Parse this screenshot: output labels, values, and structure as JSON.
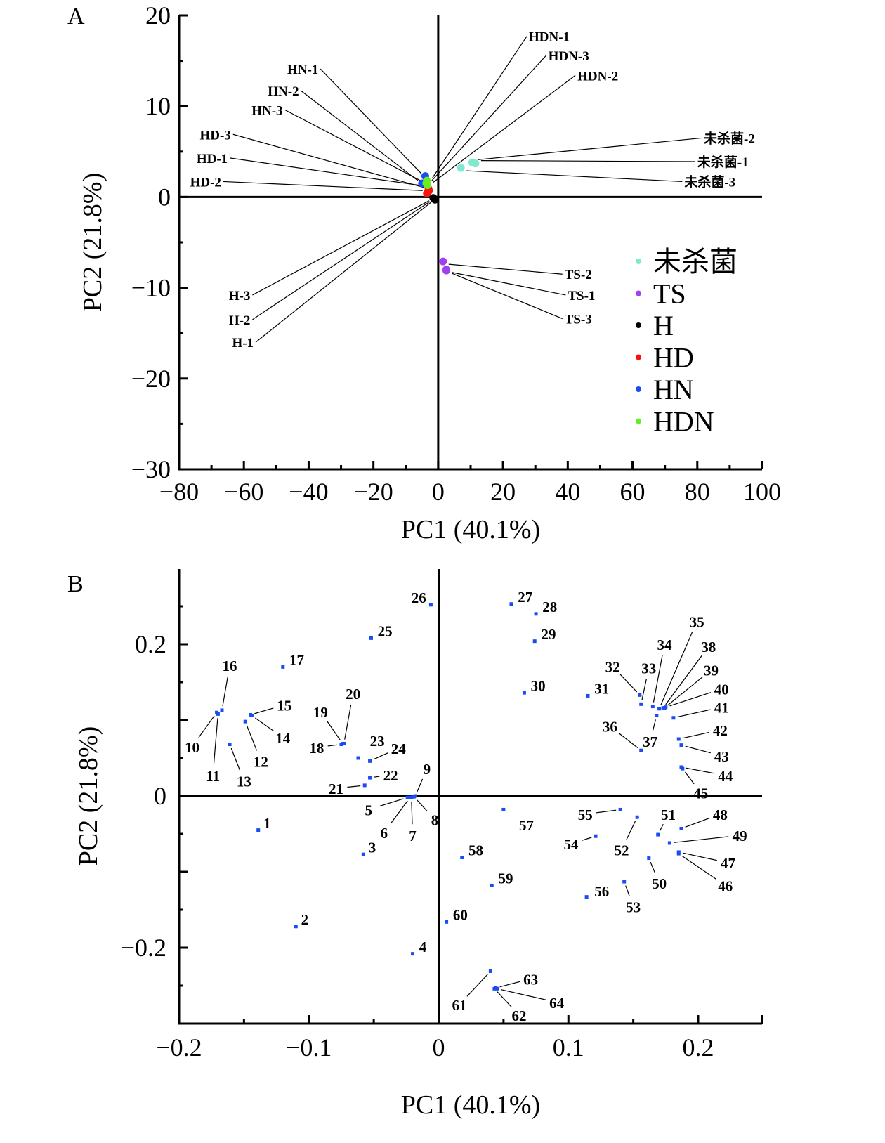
{
  "chart_data": [
    {
      "panel": "A",
      "type": "scatter",
      "title": "",
      "xlabel": "PC1 (40.1%)",
      "ylabel": "PC2 (21.8%)",
      "xlim": [
        -80,
        100
      ],
      "ylim": [
        -30,
        20
      ],
      "xticks": [
        "−80",
        "−60",
        "−40",
        "−20",
        "0",
        "20",
        "40",
        "60",
        "80",
        "100"
      ],
      "xtick_values": [
        -80,
        -60,
        -40,
        -20,
        0,
        20,
        40,
        60,
        80,
        100
      ],
      "yticks": [
        "20",
        "10",
        "0",
        "−10",
        "−20",
        "−30"
      ],
      "ytick_values": [
        20,
        10,
        0,
        -10,
        -20,
        -30
      ],
      "grid": false,
      "legend_position": "right",
      "legend": [
        {
          "name": "未杀菌",
          "color": "#7fe8cf"
        },
        {
          "name": "TS",
          "color": "#a040f0"
        },
        {
          "name": "H",
          "color": "#000000"
        },
        {
          "name": "HD",
          "color": "#ff1010"
        },
        {
          "name": "HN",
          "color": "#1a4cf5"
        },
        {
          "name": "HDN",
          "color": "#66ee22"
        }
      ],
      "series": [
        {
          "name": "未杀菌",
          "points": [
            {
              "label": "未杀菌-1",
              "x": 11.5,
              "y": 3.7,
              "lx": 80,
              "ly": 3.9
            },
            {
              "label": "未杀菌-2",
              "x": 10.5,
              "y": 3.8,
              "lx": 82,
              "ly": 6.5
            },
            {
              "label": "未杀菌-3",
              "x": 7.0,
              "y": 3.2,
              "lx": 76,
              "ly": 1.7
            }
          ]
        },
        {
          "name": "TS",
          "points": [
            {
              "label": "TS-1",
              "x": 2.5,
              "y": -8.0,
              "lx": 40,
              "ly": -10.8
            },
            {
              "label": "TS-2",
              "x": 1.5,
              "y": -7.1,
              "lx": 39,
              "ly": -8.5
            },
            {
              "label": "TS-3",
              "x": 2.5,
              "y": -8.1,
              "lx": 39,
              "ly": -13.4
            }
          ]
        },
        {
          "name": "H",
          "points": [
            {
              "label": "H-1",
              "x": -1.0,
              "y": -0.3,
              "lx": -57,
              "ly": -16.0
            },
            {
              "label": "H-2",
              "x": -1.3,
              "y": -0.2,
              "lx": -58,
              "ly": -13.5
            },
            {
              "label": "H-3",
              "x": -1.5,
              "y": -0.1,
              "lx": -58,
              "ly": -10.8
            }
          ]
        },
        {
          "name": "HD",
          "points": [
            {
              "label": "HD-1",
              "x": -3.0,
              "y": 0.9,
              "lx": -65,
              "ly": 4.3
            },
            {
              "label": "HD-2",
              "x": -3.5,
              "y": 0.4,
              "lx": -67,
              "ly": 1.7
            },
            {
              "label": "HD-3",
              "x": -2.8,
              "y": 0.7,
              "lx": -64,
              "ly": 6.9
            }
          ]
        },
        {
          "name": "HN",
          "points": [
            {
              "label": "HN-1",
              "x": -4.0,
              "y": 2.3,
              "lx": -37,
              "ly": 14.1
            },
            {
              "label": "HN-2",
              "x": -5.0,
              "y": 1.5,
              "lx": -43,
              "ly": 11.7
            },
            {
              "label": "HN-3",
              "x": -4.2,
              "y": 1.5,
              "lx": -48,
              "ly": 9.6
            }
          ]
        },
        {
          "name": "HDN",
          "points": [
            {
              "label": "HDN-1",
              "x": -3.5,
              "y": 1.8,
              "lx": 28,
              "ly": 17.7
            },
            {
              "label": "HDN-2",
              "x": -3.3,
              "y": 1.3,
              "lx": 43,
              "ly": 13.4
            },
            {
              "label": "HDN-3",
              "x": -3.7,
              "y": 1.5,
              "lx": 34,
              "ly": 15.6
            }
          ]
        }
      ]
    },
    {
      "panel": "B",
      "type": "scatter",
      "title": "",
      "xlabel": "PC1 (40.1%)",
      "ylabel": "PC2 (21.8%)",
      "xlim": [
        -0.2,
        0.25
      ],
      "ylim": [
        -0.3,
        0.3
      ],
      "xticks": [
        "−0.2",
        "−0.1",
        "0",
        "0.1",
        "0.2"
      ],
      "xtick_values": [
        -0.2,
        -0.1,
        0,
        0.1,
        0.2
      ],
      "yticks": [
        "0.2",
        "0",
        "−0.2"
      ],
      "ytick_values": [
        0.2,
        0,
        -0.2
      ],
      "grid": false,
      "marker_color": "#1a4cf5",
      "points": [
        {
          "label": "1",
          "x": -0.139,
          "y": -0.045,
          "lx": -0.135,
          "ly": -0.035,
          "leader": false
        },
        {
          "label": "2",
          "x": -0.11,
          "y": -0.172,
          "lx": -0.106,
          "ly": -0.162,
          "leader": false
        },
        {
          "label": "3",
          "x": -0.058,
          "y": -0.077,
          "lx": -0.054,
          "ly": -0.067,
          "leader": false
        },
        {
          "label": "4",
          "x": -0.02,
          "y": -0.208,
          "lx": -0.015,
          "ly": -0.198,
          "leader": false
        },
        {
          "label": "5",
          "x": -0.024,
          "y": -0.002,
          "lx": -0.054,
          "ly": -0.018,
          "leader": true
        },
        {
          "label": "6",
          "x": -0.022,
          "y": -0.002,
          "lx": -0.042,
          "ly": -0.048,
          "leader": true
        },
        {
          "label": "7",
          "x": -0.021,
          "y": -0.002,
          "lx": -0.02,
          "ly": -0.052,
          "leader": true
        },
        {
          "label": "8",
          "x": -0.019,
          "y": -0.001,
          "lx": -0.003,
          "ly": -0.031,
          "leader": true
        },
        {
          "label": "9",
          "x": -0.018,
          "y": 0.0,
          "lx": -0.009,
          "ly": 0.036,
          "leader": true
        },
        {
          "label": "10",
          "x": -0.171,
          "y": 0.11,
          "lx": -0.19,
          "ly": 0.065,
          "leader": true
        },
        {
          "label": "11",
          "x": -0.17,
          "y": 0.108,
          "lx": -0.174,
          "ly": 0.027,
          "leader": true
        },
        {
          "label": "12",
          "x": -0.149,
          "y": 0.098,
          "lx": -0.137,
          "ly": 0.046,
          "leader": true
        },
        {
          "label": "13",
          "x": -0.161,
          "y": 0.068,
          "lx": -0.15,
          "ly": 0.02,
          "leader": true
        },
        {
          "label": "14",
          "x": -0.144,
          "y": 0.106,
          "lx": -0.12,
          "ly": 0.077,
          "leader": true
        },
        {
          "label": "15",
          "x": -0.145,
          "y": 0.107,
          "lx": -0.119,
          "ly": 0.12,
          "leader": true
        },
        {
          "label": "16",
          "x": -0.167,
          "y": 0.113,
          "lx": -0.161,
          "ly": 0.172,
          "leader": true
        },
        {
          "label": "17",
          "x": -0.12,
          "y": 0.17,
          "lx": -0.115,
          "ly": 0.18,
          "leader": false
        },
        {
          "label": "18",
          "x": -0.075,
          "y": 0.068,
          "lx": -0.094,
          "ly": 0.064,
          "leader": true
        },
        {
          "label": "19",
          "x": -0.074,
          "y": 0.069,
          "lx": -0.091,
          "ly": 0.111,
          "leader": true
        },
        {
          "label": "20",
          "x": -0.073,
          "y": 0.069,
          "lx": -0.066,
          "ly": 0.135,
          "leader": true
        },
        {
          "label": "21",
          "x": -0.057,
          "y": 0.014,
          "lx": -0.079,
          "ly": 0.01,
          "leader": true
        },
        {
          "label": "22",
          "x": -0.053,
          "y": 0.024,
          "lx": -0.037,
          "ly": 0.028,
          "leader": true
        },
        {
          "label": "23",
          "x": -0.062,
          "y": 0.05,
          "lx": -0.053,
          "ly": 0.073,
          "leader": false
        },
        {
          "label": "24",
          "x": -0.053,
          "y": 0.046,
          "lx": -0.031,
          "ly": 0.063,
          "leader": true
        },
        {
          "label": "25",
          "x": -0.052,
          "y": 0.208,
          "lx": -0.047,
          "ly": 0.218,
          "leader": false
        },
        {
          "label": "26",
          "x": -0.006,
          "y": 0.252,
          "lx": -0.021,
          "ly": 0.262,
          "leader": false
        },
        {
          "label": "27",
          "x": 0.056,
          "y": 0.253,
          "lx": 0.061,
          "ly": 0.263,
          "leader": false
        },
        {
          "label": "28",
          "x": 0.075,
          "y": 0.24,
          "lx": 0.08,
          "ly": 0.25,
          "leader": false
        },
        {
          "label": "29",
          "x": 0.074,
          "y": 0.204,
          "lx": 0.079,
          "ly": 0.214,
          "leader": false
        },
        {
          "label": "30",
          "x": 0.066,
          "y": 0.136,
          "lx": 0.071,
          "ly": 0.146,
          "leader": false
        },
        {
          "label": "31",
          "x": 0.115,
          "y": 0.132,
          "lx": 0.12,
          "ly": 0.142,
          "leader": false
        },
        {
          "label": "32",
          "x": 0.155,
          "y": 0.133,
          "lx": 0.134,
          "ly": 0.171,
          "leader": true
        },
        {
          "label": "33",
          "x": 0.156,
          "y": 0.121,
          "lx": 0.162,
          "ly": 0.169,
          "leader": true
        },
        {
          "label": "34",
          "x": 0.165,
          "y": 0.118,
          "lx": 0.174,
          "ly": 0.2,
          "leader": true
        },
        {
          "label": "35",
          "x": 0.17,
          "y": 0.115,
          "lx": 0.199,
          "ly": 0.23,
          "leader": true
        },
        {
          "label": "36",
          "x": 0.156,
          "y": 0.06,
          "lx": 0.132,
          "ly": 0.092,
          "leader": true
        },
        {
          "label": "37",
          "x": 0.168,
          "y": 0.106,
          "lx": 0.163,
          "ly": 0.072,
          "leader": true
        },
        {
          "label": "38",
          "x": 0.173,
          "y": 0.116,
          "lx": 0.208,
          "ly": 0.197,
          "leader": true
        },
        {
          "label": "39",
          "x": 0.174,
          "y": 0.116,
          "lx": 0.21,
          "ly": 0.166,
          "leader": true
        },
        {
          "label": "40",
          "x": 0.175,
          "y": 0.117,
          "lx": 0.218,
          "ly": 0.141,
          "leader": true
        },
        {
          "label": "41",
          "x": 0.181,
          "y": 0.103,
          "lx": 0.218,
          "ly": 0.117,
          "leader": true
        },
        {
          "label": "42",
          "x": 0.185,
          "y": 0.075,
          "lx": 0.217,
          "ly": 0.087,
          "leader": true
        },
        {
          "label": "43",
          "x": 0.187,
          "y": 0.067,
          "lx": 0.218,
          "ly": 0.053,
          "leader": true
        },
        {
          "label": "44",
          "x": 0.187,
          "y": 0.038,
          "lx": 0.221,
          "ly": 0.027,
          "leader": true
        },
        {
          "label": "45",
          "x": 0.188,
          "y": 0.036,
          "lx": 0.202,
          "ly": 0.004,
          "leader": true
        },
        {
          "label": "46",
          "x": 0.185,
          "y": -0.076,
          "lx": 0.221,
          "ly": -0.118,
          "leader": true
        },
        {
          "label": "47",
          "x": 0.185,
          "y": -0.074,
          "lx": 0.223,
          "ly": -0.088,
          "leader": true
        },
        {
          "label": "48",
          "x": 0.187,
          "y": -0.043,
          "lx": 0.217,
          "ly": -0.024,
          "leader": true
        },
        {
          "label": "49",
          "x": 0.178,
          "y": -0.062,
          "lx": 0.232,
          "ly": -0.052,
          "leader": true
        },
        {
          "label": "50",
          "x": 0.162,
          "y": -0.082,
          "lx": 0.17,
          "ly": -0.115,
          "leader": true
        },
        {
          "label": "51",
          "x": 0.169,
          "y": -0.051,
          "lx": 0.177,
          "ly": -0.024,
          "leader": true
        },
        {
          "label": "52",
          "x": 0.153,
          "y": -0.028,
          "lx": 0.141,
          "ly": -0.071,
          "leader": true
        },
        {
          "label": "53",
          "x": 0.143,
          "y": -0.113,
          "lx": 0.15,
          "ly": -0.146,
          "leader": true
        },
        {
          "label": "54",
          "x": 0.121,
          "y": -0.053,
          "lx": 0.102,
          "ly": -0.063,
          "leader": true
        },
        {
          "label": "55",
          "x": 0.14,
          "y": -0.018,
          "lx": 0.113,
          "ly": -0.024,
          "leader": true
        },
        {
          "label": "56",
          "x": 0.114,
          "y": -0.133,
          "lx": 0.12,
          "ly": -0.125,
          "leader": false
        },
        {
          "label": "57",
          "x": 0.05,
          "y": -0.018,
          "lx": 0.062,
          "ly": -0.038,
          "leader": false
        },
        {
          "label": "58",
          "x": 0.018,
          "y": -0.081,
          "lx": 0.023,
          "ly": -0.071,
          "leader": false
        },
        {
          "label": "59",
          "x": 0.041,
          "y": -0.118,
          "lx": 0.046,
          "ly": -0.108,
          "leader": false
        },
        {
          "label": "60",
          "x": 0.006,
          "y": -0.166,
          "lx": 0.011,
          "ly": -0.156,
          "leader": false
        },
        {
          "label": "61",
          "x": 0.04,
          "y": -0.231,
          "lx": 0.016,
          "ly": -0.275,
          "leader": true
        },
        {
          "label": "62",
          "x": 0.043,
          "y": -0.254,
          "lx": 0.062,
          "ly": -0.289,
          "leader": true
        },
        {
          "label": "63",
          "x": 0.044,
          "y": -0.253,
          "lx": 0.071,
          "ly": -0.241,
          "leader": true
        },
        {
          "label": "64",
          "x": 0.045,
          "y": -0.254,
          "lx": 0.091,
          "ly": -0.272,
          "leader": true
        }
      ]
    }
  ],
  "panels": {
    "A": {
      "label": "A"
    },
    "B": {
      "label": "B"
    }
  }
}
